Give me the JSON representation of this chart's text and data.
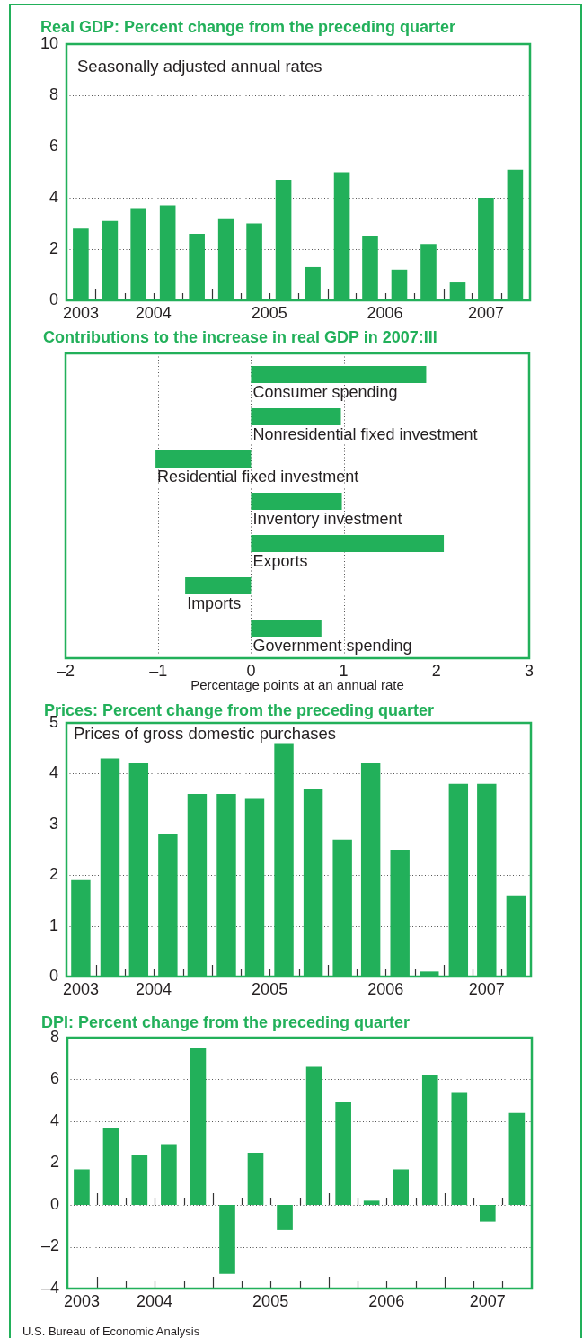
{
  "chart_data": [
    {
      "type": "bar",
      "title": "Real GDP: Percent change from the preceding quarter",
      "subtitle": "Seasonally adjusted annual rates",
      "x": [
        "2003-11-15",
        "2004-02-15",
        "2004-05-15",
        "2004-08-15",
        "2004-11-15",
        "2005-02-15",
        "2005-05-15",
        "2005-08-15",
        "2005-11-15",
        "2006-02-15",
        "2006-05-15",
        "2006-08-15",
        "2006-11-15",
        "2007-02-15",
        "2007-05-15",
        "2007-08-15"
      ],
      "values": [
        2.8,
        3.1,
        3.6,
        3.7,
        2.6,
        3.2,
        3.0,
        4.7,
        1.3,
        5.0,
        2.5,
        1.2,
        2.2,
        0.7,
        4.0,
        5.1
      ],
      "color": "#22b05a",
      "xlim": [
        "2003-10",
        "2007-10"
      ],
      "xticks": [
        {
          "value": "2003-11-15",
          "label": "2003"
        },
        {
          "value": "2004",
          "label": null
        },
        {
          "value": "2004-04",
          "label": null
        },
        {
          "value": "2004-07",
          "label": "2004"
        },
        {
          "value": "2004-07",
          "label": null
        },
        {
          "value": "2004-10",
          "label": null
        },
        {
          "value": "2005",
          "label": null
        },
        {
          "value": "2005-04",
          "label": null
        },
        {
          "value": "2005-07",
          "label": "2005"
        },
        {
          "value": "2005-07",
          "label": null
        },
        {
          "value": "2005-10",
          "label": null
        },
        {
          "value": "2006",
          "label": null
        },
        {
          "value": "2006-04",
          "label": null
        },
        {
          "value": "2006-07",
          "label": "2006"
        },
        {
          "value": "2006-07",
          "label": null
        },
        {
          "value": "2006-10",
          "label": null
        },
        {
          "value": "2007",
          "label": null
        },
        {
          "value": "2007-04",
          "label": null
        },
        {
          "value": "2007-05-15",
          "label": "2007"
        },
        {
          "value": "2007-07",
          "label": null
        }
      ],
      "ylim": [
        0,
        10
      ],
      "yticks": [
        0,
        2,
        4,
        6,
        8,
        10
      ],
      "grid": "y"
    },
    {
      "type": "bar",
      "orientation": "horizontal",
      "title": "Contributions to the increase in real GDP in 2007:III",
      "categories": [
        "Consumer spending",
        "Nonresidential fixed investment",
        "Residential fixed investment",
        "Inventory investment",
        "Exports",
        "Imports",
        "Government spending"
      ],
      "values": [
        1.89,
        0.97,
        -1.03,
        0.98,
        2.08,
        -0.71,
        0.76
      ],
      "color": "#22b05a",
      "xlim": [
        -2,
        3
      ],
      "xticks": [
        {
          "value": -2,
          "label": "–2"
        },
        {
          "value": -1,
          "label": "–1"
        },
        0,
        1,
        2,
        3
      ],
      "xlabel": "Percentage points at an annual rate",
      "grid": "x"
    },
    {
      "type": "bar",
      "title": "Prices: Percent change from the preceding quarter",
      "subtitle": "Prices of gross domestic purchases",
      "x": [
        "2003-11-15",
        "2004-02-15",
        "2004-05-15",
        "2004-08-15",
        "2004-11-15",
        "2005-02-15",
        "2005-05-15",
        "2005-08-15",
        "2005-11-15",
        "2006-02-15",
        "2006-05-15",
        "2006-08-15",
        "2006-11-15",
        "2007-02-15",
        "2007-05-15",
        "2007-08-15"
      ],
      "values": [
        1.9,
        4.3,
        4.2,
        2.8,
        3.6,
        3.6,
        3.5,
        4.6,
        3.7,
        2.7,
        4.2,
        2.5,
        0.1,
        3.8,
        3.8,
        1.6
      ],
      "color": "#22b05a",
      "xlim": [
        "2003-10",
        "2007-10"
      ],
      "xticks": [
        {
          "value": "2003-11-15",
          "label": "2003"
        },
        {
          "value": "2004",
          "label": null
        },
        {
          "value": "2004-04",
          "label": null
        },
        {
          "value": "2004-07",
          "label": "2004"
        },
        {
          "value": "2004-07",
          "label": null
        },
        {
          "value": "2004-10",
          "label": null
        },
        {
          "value": "2005",
          "label": null
        },
        {
          "value": "2005-04",
          "label": null
        },
        {
          "value": "2005-07",
          "label": "2005"
        },
        {
          "value": "2005-07",
          "label": null
        },
        {
          "value": "2005-10",
          "label": null
        },
        {
          "value": "2006",
          "label": null
        },
        {
          "value": "2006-04",
          "label": null
        },
        {
          "value": "2006-07",
          "label": "2006"
        },
        {
          "value": "2006-07",
          "label": null
        },
        {
          "value": "2006-10",
          "label": null
        },
        {
          "value": "2007",
          "label": null
        },
        {
          "value": "2007-04",
          "label": null
        },
        {
          "value": "2007-05-15",
          "label": "2007"
        },
        {
          "value": "2007-07",
          "label": null
        }
      ],
      "ylim": [
        0,
        5
      ],
      "yticks": [
        0,
        1,
        2,
        3,
        4,
        5
      ],
      "grid": "y"
    },
    {
      "type": "bar",
      "title": "DPI: Percent change from the preceding quarter",
      "x": [
        "2003-11-15",
        "2004-02-15",
        "2004-05-15",
        "2004-08-15",
        "2004-11-15",
        "2005-02-15",
        "2005-05-15",
        "2005-08-15",
        "2005-11-15",
        "2006-02-15",
        "2006-05-15",
        "2006-08-15",
        "2006-11-15",
        "2007-02-15",
        "2007-05-15",
        "2007-08-15"
      ],
      "values": [
        1.7,
        3.7,
        2.4,
        2.9,
        7.5,
        -3.3,
        2.5,
        -1.2,
        6.6,
        4.9,
        0.2,
        1.7,
        6.2,
        5.4,
        -0.8,
        4.4
      ],
      "color": "#22b05a",
      "xlim": [
        "2003-10",
        "2007-10"
      ],
      "xticks": [
        {
          "value": "2003-11-15",
          "label": "2003"
        },
        {
          "value": "2004",
          "label": null
        },
        {
          "value": "2004-04",
          "label": null
        },
        {
          "value": "2004-07",
          "label": "2004"
        },
        {
          "value": "2004-07",
          "label": null
        },
        {
          "value": "2004-10",
          "label": null
        },
        {
          "value": "2005",
          "label": null
        },
        {
          "value": "2005-04",
          "label": null
        },
        {
          "value": "2005-07",
          "label": "2005"
        },
        {
          "value": "2005-07",
          "label": null
        },
        {
          "value": "2005-10",
          "label": null
        },
        {
          "value": "2006",
          "label": null
        },
        {
          "value": "2006-04",
          "label": null
        },
        {
          "value": "2006-07",
          "label": "2006"
        },
        {
          "value": "2006-07",
          "label": null
        },
        {
          "value": "2006-10",
          "label": null
        },
        {
          "value": "2007",
          "label": null
        },
        {
          "value": "2007-04",
          "label": null
        },
        {
          "value": "2007-05-15",
          "label": "2007"
        },
        {
          "value": "2007-07",
          "label": null
        }
      ],
      "ylim": [
        -4,
        8
      ],
      "yticks": [
        {
          "value": -4,
          "label": "–4"
        },
        {
          "value": -2,
          "label": "–2"
        },
        0,
        2,
        4,
        6,
        8
      ],
      "grid": "y",
      "annotations": [
        "U.S. Bureau of Economic Analysis"
      ]
    }
  ]
}
